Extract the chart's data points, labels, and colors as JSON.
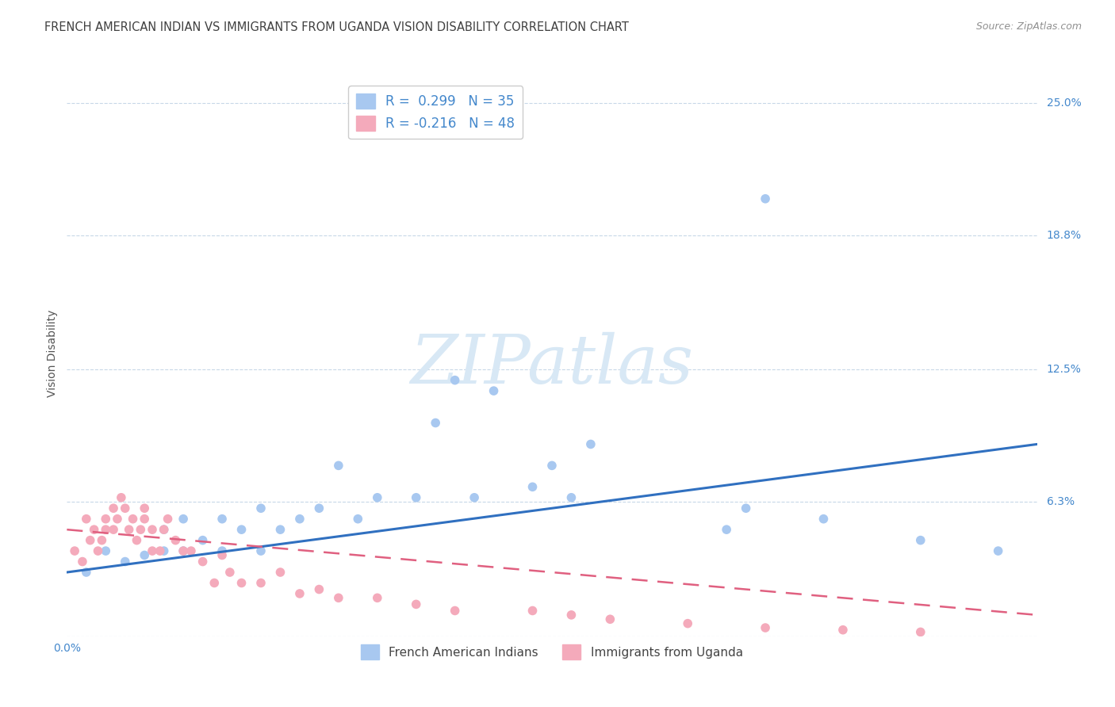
{
  "title": "FRENCH AMERICAN INDIAN VS IMMIGRANTS FROM UGANDA VISION DISABILITY CORRELATION CHART",
  "source": "Source: ZipAtlas.com",
  "ylabel": "Vision Disability",
  "xlim": [
    0.0,
    0.25
  ],
  "ylim": [
    0.0,
    0.265
  ],
  "blue_color": "#A8C8F0",
  "pink_color": "#F4AABB",
  "line_blue": "#3070C0",
  "line_pink": "#E06080",
  "watermark_color": "#D8E8F5",
  "grid_color": "#C8D8E8",
  "title_color": "#404040",
  "source_color": "#909090",
  "tick_color": "#4488CC",
  "legend_r_blue": "R =  0.299",
  "legend_n_blue": "N = 35",
  "legend_r_pink": "R = -0.216",
  "legend_n_pink": "N = 48",
  "blue_scatter_x": [
    0.005,
    0.01,
    0.015,
    0.02,
    0.025,
    0.025,
    0.03,
    0.03,
    0.035,
    0.04,
    0.04,
    0.045,
    0.05,
    0.05,
    0.055,
    0.06,
    0.065,
    0.07,
    0.075,
    0.08,
    0.09,
    0.095,
    0.1,
    0.105,
    0.11,
    0.12,
    0.125,
    0.13,
    0.135,
    0.17,
    0.175,
    0.18,
    0.195,
    0.22,
    0.24
  ],
  "blue_scatter_y": [
    0.03,
    0.04,
    0.035,
    0.038,
    0.04,
    0.05,
    0.04,
    0.055,
    0.045,
    0.04,
    0.055,
    0.05,
    0.04,
    0.06,
    0.05,
    0.055,
    0.06,
    0.08,
    0.055,
    0.065,
    0.065,
    0.1,
    0.12,
    0.065,
    0.115,
    0.07,
    0.08,
    0.065,
    0.09,
    0.05,
    0.06,
    0.205,
    0.055,
    0.045,
    0.04
  ],
  "pink_scatter_x": [
    0.002,
    0.004,
    0.005,
    0.006,
    0.007,
    0.008,
    0.009,
    0.01,
    0.01,
    0.012,
    0.012,
    0.013,
    0.014,
    0.015,
    0.016,
    0.017,
    0.018,
    0.019,
    0.02,
    0.02,
    0.022,
    0.022,
    0.024,
    0.025,
    0.026,
    0.028,
    0.03,
    0.032,
    0.035,
    0.038,
    0.04,
    0.042,
    0.045,
    0.05,
    0.055,
    0.06,
    0.065,
    0.07,
    0.08,
    0.09,
    0.1,
    0.12,
    0.13,
    0.14,
    0.16,
    0.18,
    0.2,
    0.22
  ],
  "pink_scatter_y": [
    0.04,
    0.035,
    0.055,
    0.045,
    0.05,
    0.04,
    0.045,
    0.05,
    0.055,
    0.05,
    0.06,
    0.055,
    0.065,
    0.06,
    0.05,
    0.055,
    0.045,
    0.05,
    0.055,
    0.06,
    0.05,
    0.04,
    0.04,
    0.05,
    0.055,
    0.045,
    0.04,
    0.04,
    0.035,
    0.025,
    0.038,
    0.03,
    0.025,
    0.025,
    0.03,
    0.02,
    0.022,
    0.018,
    0.018,
    0.015,
    0.012,
    0.012,
    0.01,
    0.008,
    0.006,
    0.004,
    0.003,
    0.002
  ],
  "title_fontsize": 10.5,
  "label_fontsize": 10,
  "tick_fontsize": 10,
  "source_fontsize": 9
}
